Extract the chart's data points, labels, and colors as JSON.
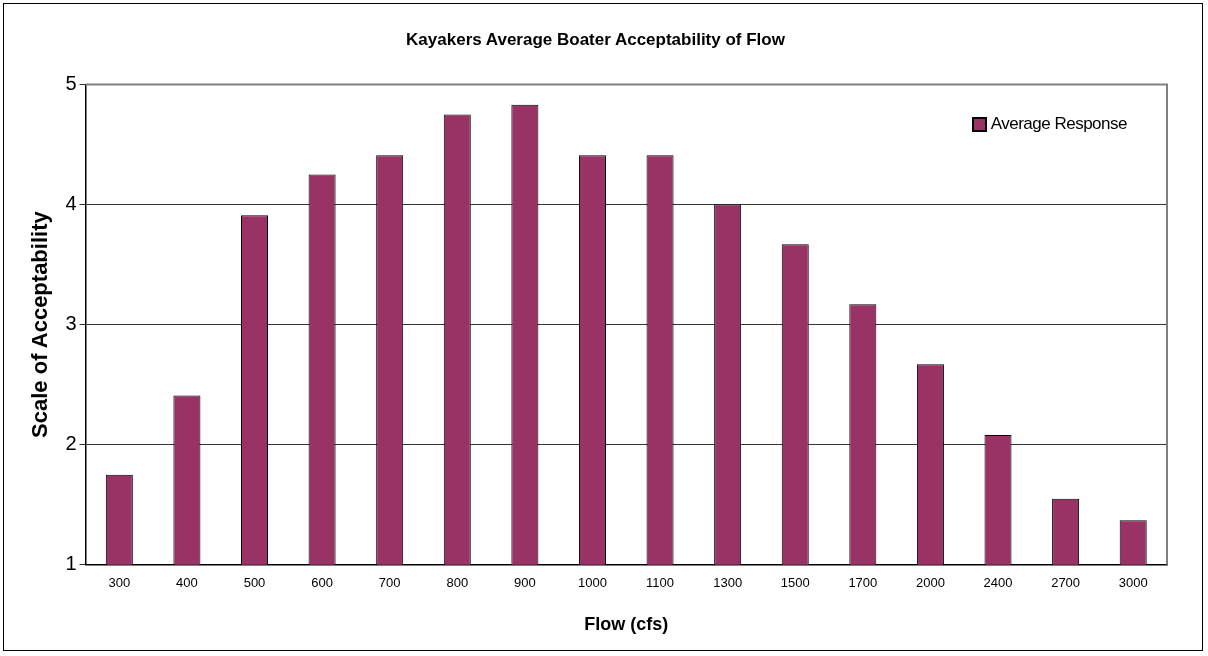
{
  "chart_data": {
    "type": "bar",
    "title": "Kayakers Average Boater Acceptability of Flow",
    "xlabel": "Flow (cfs)",
    "ylabel": "Scale of Acceptability",
    "categories": [
      "300",
      "400",
      "500",
      "600",
      "700",
      "800",
      "900",
      "1000",
      "1100",
      "1300",
      "1500",
      "1700",
      "2000",
      "2400",
      "2700",
      "3000"
    ],
    "series": [
      {
        "name": "Average Response",
        "color": "#993366",
        "values": [
          1.75,
          2.41,
          3.91,
          4.25,
          4.41,
          4.75,
          4.83,
          4.41,
          4.41,
          4.0,
          3.67,
          3.17,
          2.67,
          2.08,
          1.55,
          1.37
        ]
      }
    ],
    "ylim": [
      1,
      5
    ],
    "yticks": [
      1,
      2,
      3,
      4,
      5
    ],
    "grid": "y",
    "legend": "top right"
  }
}
